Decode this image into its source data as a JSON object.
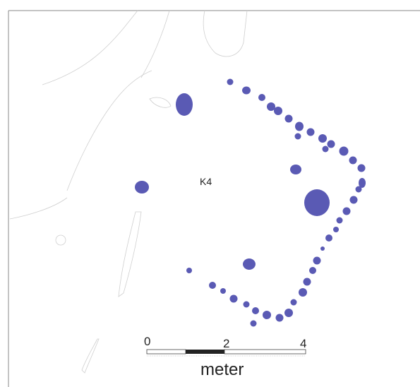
{
  "plan": {
    "feature_label": "K4",
    "post_color": "#5a5ab4"
  },
  "scale_bar": {
    "ticks": [
      "0",
      "2",
      "4"
    ],
    "unit": "meter"
  }
}
